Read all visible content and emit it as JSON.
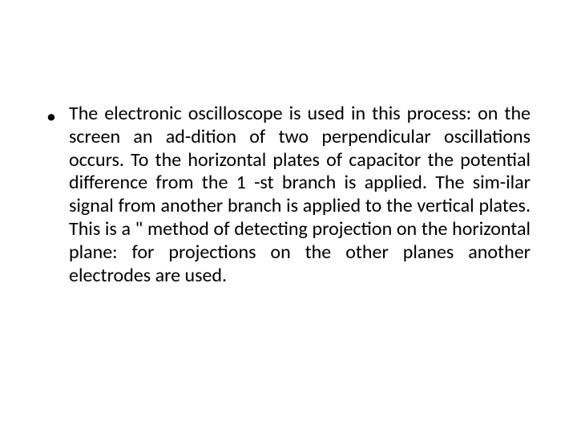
{
  "slide": {
    "background_color": "#ffffff",
    "text_color": "#000000",
    "font_family": "Calibri",
    "font_size_pt": 24,
    "line_height": 1.2,
    "text_align": "justify",
    "bullets": [
      {
        "marker": "•",
        "text": "The electronic oscilloscope is used in this process: on the screen an ad-dition of two perpendicular oscillations occurs. To the horizontal plates of capacitor the potential difference from the 1 -st branch is applied. The sim-ilar signal from another branch is applied to the vertical plates. This is a \" method of detecting projection on the horizontal plane: for projections on the other planes another electrodes are used."
      }
    ]
  }
}
